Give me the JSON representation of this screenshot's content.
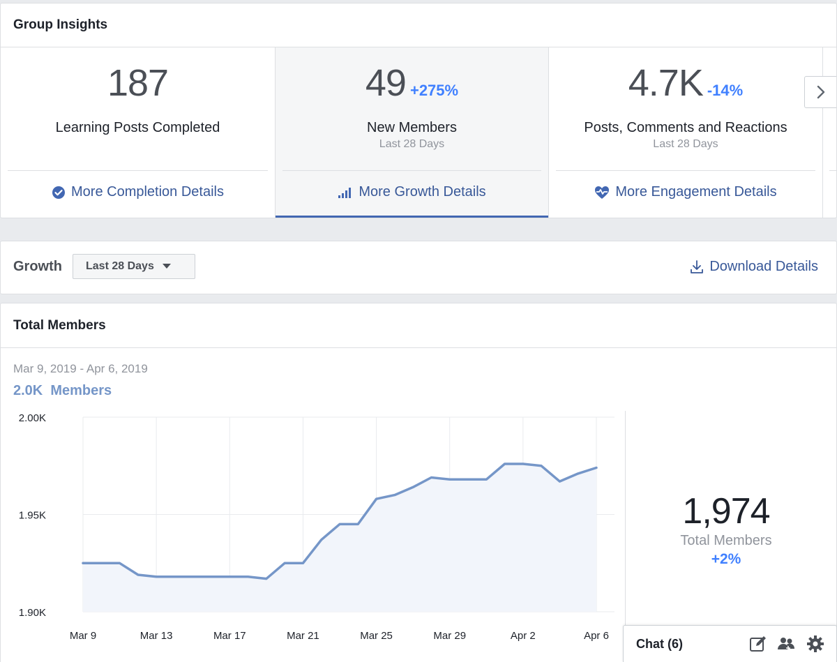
{
  "insights": {
    "title": "Group Insights",
    "stats": [
      {
        "value": "187",
        "delta": "",
        "label": "Learning Posts Completed",
        "sub": "",
        "link": "More Completion Details",
        "icon": "check-circle-icon"
      },
      {
        "value": "49",
        "delta": "+275%",
        "label": "New Members",
        "sub": "Last 28 Days",
        "link": "More Growth Details",
        "icon": "bar-chart-icon"
      },
      {
        "value": "4.7K",
        "delta": "-14%",
        "label": "Posts, Comments and Reactions",
        "sub": "Last 28 Days",
        "link": "More Engagement Details",
        "icon": "heart-pulse-icon"
      }
    ],
    "active_index": 1
  },
  "growth": {
    "title": "Growth",
    "range": "Last 28 Days",
    "download": "Download Details"
  },
  "members": {
    "title": "Total Members",
    "date_range": "Mar 9, 2019 - Apr 6, 2019",
    "count": "2.0K  Members",
    "total": "1,974",
    "total_label": "Total Members",
    "total_delta": "+2%"
  },
  "chart_data": {
    "type": "area",
    "y_tick_labels": [
      "2.00K",
      "1.95K",
      "1.90K"
    ],
    "y_ticks": [
      2000,
      1950,
      1900
    ],
    "ylim": [
      1900,
      2000
    ],
    "x_tick_labels": [
      "Mar 9",
      "Mar 13",
      "Mar 17",
      "Mar 21",
      "Mar 25",
      "Mar 29",
      "Apr 2",
      "Apr 6"
    ],
    "x": [
      "Mar 9",
      "Mar 10",
      "Mar 11",
      "Mar 12",
      "Mar 13",
      "Mar 14",
      "Mar 15",
      "Mar 16",
      "Mar 17",
      "Mar 18",
      "Mar 19",
      "Mar 20",
      "Mar 21",
      "Mar 22",
      "Mar 23",
      "Mar 24",
      "Mar 25",
      "Mar 26",
      "Mar 27",
      "Mar 28",
      "Mar 29",
      "Mar 30",
      "Mar 31",
      "Apr 1",
      "Apr 2",
      "Apr 3",
      "Apr 4",
      "Apr 5",
      "Apr 6"
    ],
    "values": [
      1925,
      1925,
      1925,
      1919,
      1918,
      1918,
      1918,
      1918,
      1918,
      1918,
      1917,
      1925,
      1925,
      1937,
      1945,
      1945,
      1958,
      1960,
      1964,
      1969,
      1968,
      1968,
      1968,
      1976,
      1976,
      1975,
      1967,
      1971,
      1974
    ],
    "color": "#7596c8",
    "fill": "#f2f5fb",
    "grid": true
  },
  "chat": {
    "label": "Chat (6)",
    "icons": [
      "compose-icon",
      "people-icon",
      "gear-icon"
    ]
  },
  "colors": {
    "link": "#385898",
    "accent": "#4267b2",
    "delta": "#4080ff"
  }
}
